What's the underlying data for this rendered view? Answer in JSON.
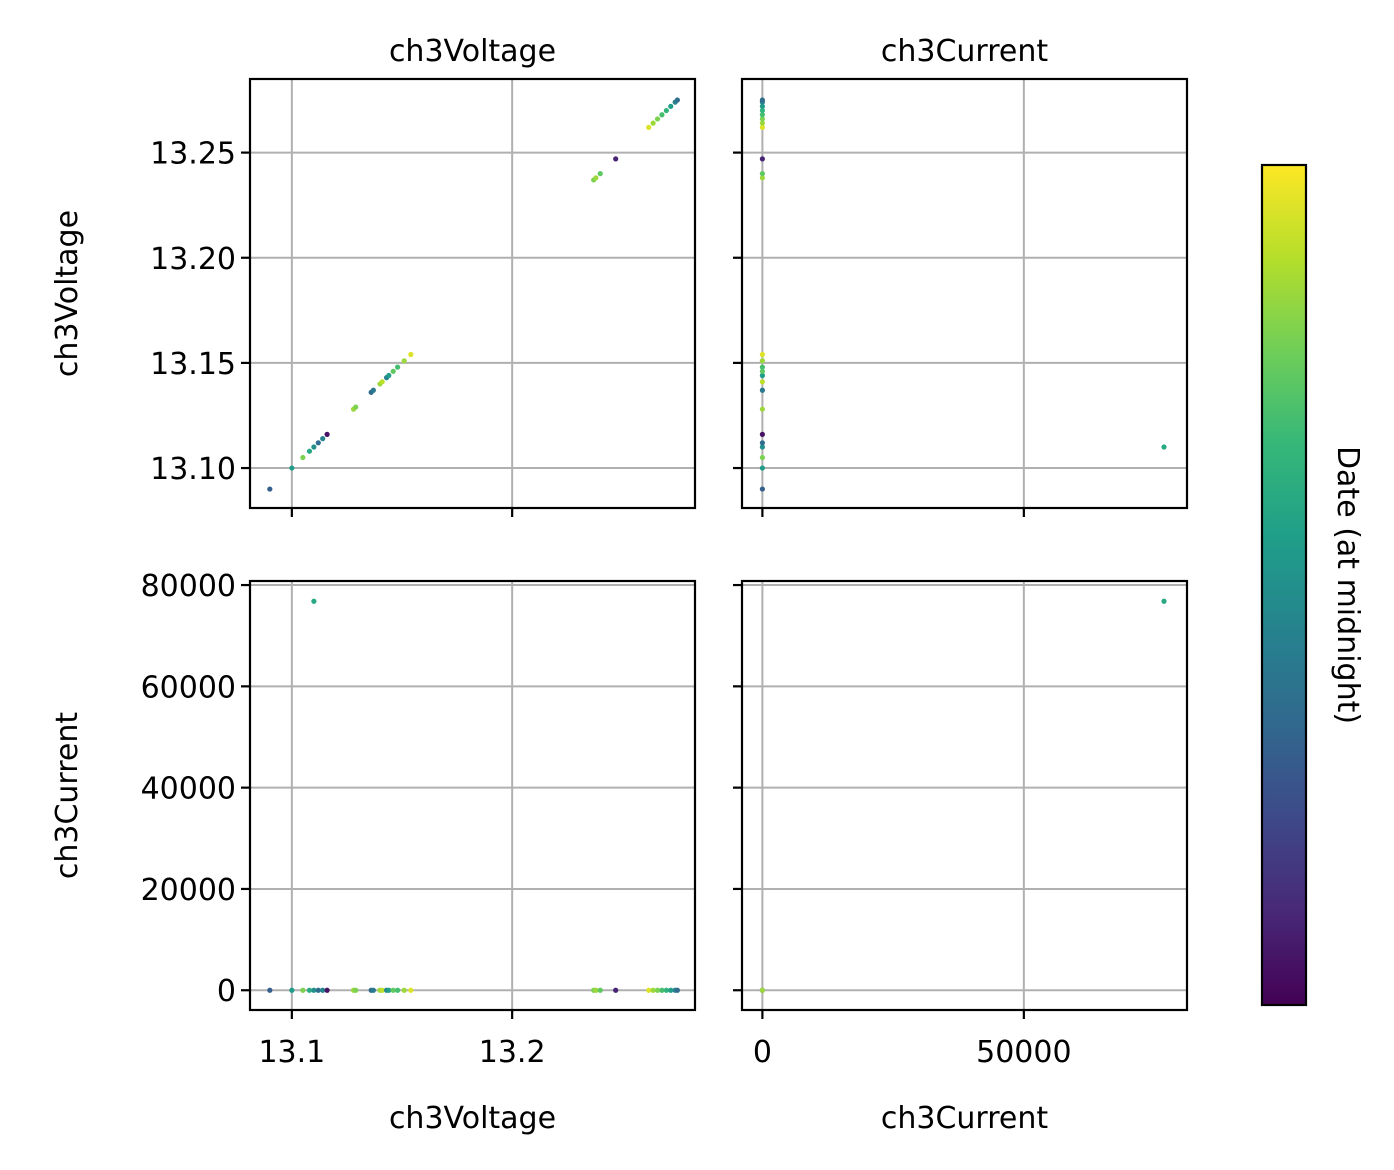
{
  "chart_data": {
    "type": "scatter",
    "layout": "pair-plot 2x2",
    "variables": [
      "ch3Voltage",
      "ch3Current"
    ],
    "panels": [
      {
        "row": 0,
        "col": 0,
        "xvar": "ch3Voltage",
        "yvar": "ch3Voltage",
        "title": "ch3Voltage",
        "xlabel": "",
        "ylabel": "ch3Voltage",
        "xlim": [
          13.081,
          13.283
        ],
        "ylim": [
          13.081,
          13.285
        ],
        "xticks": [
          13.1,
          13.2
        ],
        "xtick_labels": [
          "",
          ""
        ],
        "yticks": [
          13.1,
          13.15,
          13.2,
          13.25
        ],
        "ytick_labels": [
          "13.10",
          "13.15",
          "13.20",
          "13.25"
        ],
        "points": [
          {
            "x": 13.09,
            "y": 13.09,
            "c": 0.3
          },
          {
            "x": 13.1,
            "y": 13.1,
            "c": 0.55
          },
          {
            "x": 13.105,
            "y": 13.105,
            "c": 0.8
          },
          {
            "x": 13.108,
            "y": 13.108,
            "c": 0.6
          },
          {
            "x": 13.11,
            "y": 13.11,
            "c": 0.5
          },
          {
            "x": 13.112,
            "y": 13.112,
            "c": 0.35
          },
          {
            "x": 13.114,
            "y": 13.114,
            "c": 0.45
          },
          {
            "x": 13.116,
            "y": 13.116,
            "c": 0.05
          },
          {
            "x": 13.128,
            "y": 13.128,
            "c": 0.85
          },
          {
            "x": 13.129,
            "y": 13.129,
            "c": 0.8
          },
          {
            "x": 13.136,
            "y": 13.136,
            "c": 0.35
          },
          {
            "x": 13.137,
            "y": 13.137,
            "c": 0.4
          },
          {
            "x": 13.14,
            "y": 13.14,
            "c": 0.85
          },
          {
            "x": 13.141,
            "y": 13.141,
            "c": 0.9
          },
          {
            "x": 13.143,
            "y": 13.143,
            "c": 0.45
          },
          {
            "x": 13.144,
            "y": 13.144,
            "c": 0.55
          },
          {
            "x": 13.146,
            "y": 13.146,
            "c": 0.75
          },
          {
            "x": 13.148,
            "y": 13.148,
            "c": 0.7
          },
          {
            "x": 13.151,
            "y": 13.151,
            "c": 0.85
          },
          {
            "x": 13.154,
            "y": 13.154,
            "c": 0.95
          },
          {
            "x": 13.237,
            "y": 13.237,
            "c": 0.8
          },
          {
            "x": 13.238,
            "y": 13.238,
            "c": 0.85
          },
          {
            "x": 13.24,
            "y": 13.24,
            "c": 0.75
          },
          {
            "x": 13.247,
            "y": 13.247,
            "c": 0.1
          },
          {
            "x": 13.262,
            "y": 13.262,
            "c": 0.95
          },
          {
            "x": 13.264,
            "y": 13.264,
            "c": 0.85
          },
          {
            "x": 13.266,
            "y": 13.266,
            "c": 0.8
          },
          {
            "x": 13.268,
            "y": 13.268,
            "c": 0.7
          },
          {
            "x": 13.27,
            "y": 13.27,
            "c": 0.65
          },
          {
            "x": 13.272,
            "y": 13.272,
            "c": 0.55
          },
          {
            "x": 13.274,
            "y": 13.274,
            "c": 0.45
          },
          {
            "x": 13.275,
            "y": 13.275,
            "c": 0.35
          }
        ]
      },
      {
        "row": 0,
        "col": 1,
        "xvar": "ch3Current",
        "yvar": "ch3Voltage",
        "title": "ch3Current",
        "xlabel": "",
        "ylabel": "",
        "xlim": [
          -3900,
          81200
        ],
        "ylim": [
          13.081,
          13.285
        ],
        "xticks": [
          0,
          50000
        ],
        "xtick_labels": [
          "",
          ""
        ],
        "yticks": [
          13.1,
          13.15,
          13.2,
          13.25
        ],
        "ytick_labels": [
          "",
          "",
          "",
          ""
        ],
        "points": [
          {
            "x": 0,
            "y": 13.09,
            "c": 0.3
          },
          {
            "x": 0,
            "y": 13.1,
            "c": 0.55
          },
          {
            "x": 0,
            "y": 13.105,
            "c": 0.8
          },
          {
            "x": 0,
            "y": 13.11,
            "c": 0.5
          },
          {
            "x": 0,
            "y": 13.112,
            "c": 0.35
          },
          {
            "x": 0,
            "y": 13.116,
            "c": 0.05
          },
          {
            "x": 0,
            "y": 13.128,
            "c": 0.85
          },
          {
            "x": 0,
            "y": 13.137,
            "c": 0.4
          },
          {
            "x": 0,
            "y": 13.141,
            "c": 0.9
          },
          {
            "x": 0,
            "y": 13.144,
            "c": 0.55
          },
          {
            "x": 0,
            "y": 13.146,
            "c": 0.75
          },
          {
            "x": 0,
            "y": 13.148,
            "c": 0.7
          },
          {
            "x": 0,
            "y": 13.151,
            "c": 0.85
          },
          {
            "x": 0,
            "y": 13.154,
            "c": 0.95
          },
          {
            "x": 0,
            "y": 13.238,
            "c": 0.85
          },
          {
            "x": 0,
            "y": 13.24,
            "c": 0.75
          },
          {
            "x": 0,
            "y": 13.247,
            "c": 0.1
          },
          {
            "x": 0,
            "y": 13.262,
            "c": 0.95
          },
          {
            "x": 0,
            "y": 13.264,
            "c": 0.85
          },
          {
            "x": 0,
            "y": 13.266,
            "c": 0.8
          },
          {
            "x": 0,
            "y": 13.268,
            "c": 0.7
          },
          {
            "x": 0,
            "y": 13.27,
            "c": 0.65
          },
          {
            "x": 0,
            "y": 13.272,
            "c": 0.55
          },
          {
            "x": 0,
            "y": 13.274,
            "c": 0.45
          },
          {
            "x": 0,
            "y": 13.275,
            "c": 0.35
          },
          {
            "x": 76800,
            "y": 13.11,
            "c": 0.6
          }
        ]
      },
      {
        "row": 1,
        "col": 0,
        "xvar": "ch3Voltage",
        "yvar": "ch3Current",
        "title": "",
        "xlabel": "ch3Voltage",
        "ylabel": "ch3Current",
        "xlim": [
          13.081,
          13.283
        ],
        "ylim": [
          -3900,
          80800
        ],
        "xticks": [
          13.1,
          13.2
        ],
        "xtick_labels": [
          "13.1",
          "13.2"
        ],
        "yticks": [
          0,
          20000,
          40000,
          60000,
          80000
        ],
        "ytick_labels": [
          "0",
          "20000",
          "40000",
          "60000",
          "80000"
        ],
        "points": [
          {
            "x": 13.09,
            "y": 0,
            "c": 0.3
          },
          {
            "x": 13.1,
            "y": 0,
            "c": 0.55
          },
          {
            "x": 13.105,
            "y": 0,
            "c": 0.8
          },
          {
            "x": 13.108,
            "y": 0,
            "c": 0.6
          },
          {
            "x": 13.11,
            "y": 0,
            "c": 0.5
          },
          {
            "x": 13.112,
            "y": 0,
            "c": 0.35
          },
          {
            "x": 13.114,
            "y": 0,
            "c": 0.45
          },
          {
            "x": 13.116,
            "y": 0,
            "c": 0.05
          },
          {
            "x": 13.128,
            "y": 0,
            "c": 0.85
          },
          {
            "x": 13.129,
            "y": 0,
            "c": 0.8
          },
          {
            "x": 13.136,
            "y": 0,
            "c": 0.35
          },
          {
            "x": 13.137,
            "y": 0,
            "c": 0.4
          },
          {
            "x": 13.14,
            "y": 0,
            "c": 0.85
          },
          {
            "x": 13.141,
            "y": 0,
            "c": 0.9
          },
          {
            "x": 13.143,
            "y": 0,
            "c": 0.45
          },
          {
            "x": 13.144,
            "y": 0,
            "c": 0.55
          },
          {
            "x": 13.146,
            "y": 0,
            "c": 0.75
          },
          {
            "x": 13.148,
            "y": 0,
            "c": 0.7
          },
          {
            "x": 13.151,
            "y": 0,
            "c": 0.85
          },
          {
            "x": 13.154,
            "y": 0,
            "c": 0.95
          },
          {
            "x": 13.237,
            "y": 0,
            "c": 0.8
          },
          {
            "x": 13.238,
            "y": 0,
            "c": 0.85
          },
          {
            "x": 13.24,
            "y": 0,
            "c": 0.75
          },
          {
            "x": 13.247,
            "y": 0,
            "c": 0.1
          },
          {
            "x": 13.262,
            "y": 0,
            "c": 0.95
          },
          {
            "x": 13.264,
            "y": 0,
            "c": 0.85
          },
          {
            "x": 13.266,
            "y": 0,
            "c": 0.8
          },
          {
            "x": 13.268,
            "y": 0,
            "c": 0.7
          },
          {
            "x": 13.27,
            "y": 0,
            "c": 0.65
          },
          {
            "x": 13.272,
            "y": 0,
            "c": 0.55
          },
          {
            "x": 13.274,
            "y": 0,
            "c": 0.45
          },
          {
            "x": 13.275,
            "y": 0,
            "c": 0.35
          },
          {
            "x": 13.11,
            "y": 76800,
            "c": 0.6
          }
        ]
      },
      {
        "row": 1,
        "col": 1,
        "xvar": "ch3Current",
        "yvar": "ch3Current",
        "title": "",
        "xlabel": "ch3Current",
        "ylabel": "",
        "xlim": [
          -3900,
          81200
        ],
        "ylim": [
          -3900,
          80800
        ],
        "xticks": [
          0,
          50000
        ],
        "xtick_labels": [
          "0",
          "50000"
        ],
        "yticks": [
          0,
          20000,
          40000,
          60000,
          80000
        ],
        "ytick_labels": [
          "",
          "",
          "",
          "",
          ""
        ],
        "points": [
          {
            "x": 0,
            "y": 0,
            "c": 0.4
          },
          {
            "x": 0,
            "y": 0,
            "c": 0.85
          },
          {
            "x": 76800,
            "y": 76800,
            "c": 0.6
          }
        ]
      }
    ],
    "colorbar": {
      "label": "Date (at midnight)",
      "colormap": "viridis",
      "colors": [
        "#440154",
        "#482878",
        "#3e4989",
        "#31688e",
        "#26828e",
        "#1f9e89",
        "#35b779",
        "#6ece58",
        "#b5de2b",
        "#fde725"
      ],
      "ticks": []
    },
    "grid": true
  }
}
